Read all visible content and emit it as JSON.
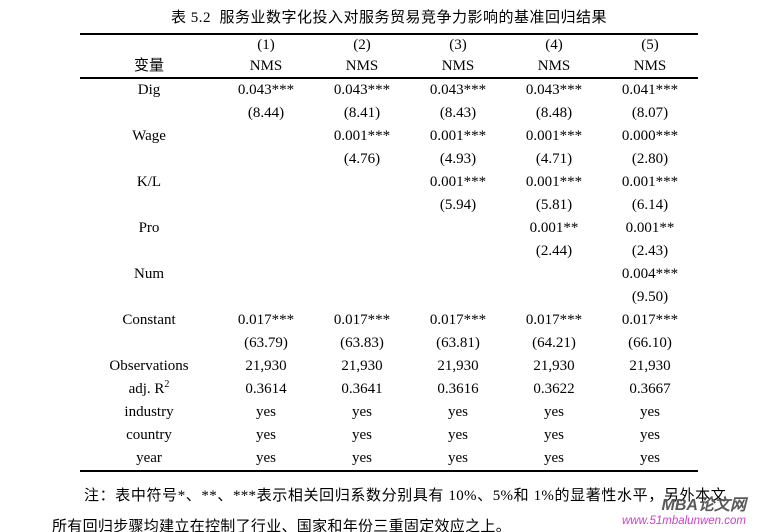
{
  "page": {
    "title": "表 5.2  服务业数字化投入对服务贸易竞争力影响的基准回归结果"
  },
  "table": {
    "header": {
      "variable_label": "变量",
      "col_numbers": [
        "(1)",
        "(2)",
        "(3)",
        "(4)",
        "(5)"
      ],
      "dep_var_labels": [
        "NMS",
        "NMS",
        "NMS",
        "NMS",
        "NMS"
      ]
    },
    "rows": [
      {
        "label": "Dig",
        "values": [
          "0.043***",
          "0.043***",
          "0.043***",
          "0.043***",
          "0.041***"
        ]
      },
      {
        "label": "",
        "values": [
          "(8.44)",
          "(8.41)",
          "(8.43)",
          "(8.48)",
          "(8.07)"
        ]
      },
      {
        "label": "Wage",
        "values": [
          "",
          "0.001***",
          "0.001***",
          "0.001***",
          "0.000***"
        ]
      },
      {
        "label": "",
        "values": [
          "",
          "(4.76)",
          "(4.93)",
          "(4.71)",
          "(2.80)"
        ]
      },
      {
        "label": "K/L",
        "values": [
          "",
          "",
          "0.001***",
          "0.001***",
          "0.001***"
        ]
      },
      {
        "label": "",
        "values": [
          "",
          "",
          "(5.94)",
          "(5.81)",
          "(6.14)"
        ]
      },
      {
        "label": "Pro",
        "values": [
          "",
          "",
          "",
          "0.001**",
          "0.001**"
        ]
      },
      {
        "label": "",
        "values": [
          "",
          "",
          "",
          "(2.44)",
          "(2.43)"
        ]
      },
      {
        "label": "Num",
        "values": [
          "",
          "",
          "",
          "",
          "0.004***"
        ]
      },
      {
        "label": "",
        "values": [
          "",
          "",
          "",
          "",
          "(9.50)"
        ]
      },
      {
        "label": "Constant",
        "values": [
          "0.017***",
          "0.017***",
          "0.017***",
          "0.017***",
          "0.017***"
        ]
      },
      {
        "label": "",
        "values": [
          "(63.79)",
          "(63.83)",
          "(63.81)",
          "(64.21)",
          "(66.10)"
        ]
      },
      {
        "label": "Observations",
        "values": [
          "21,930",
          "21,930",
          "21,930",
          "21,930",
          "21,930"
        ]
      },
      {
        "label": "adj. R",
        "label_sup": "2",
        "values": [
          "0.3614",
          "0.3641",
          "0.3616",
          "0.3622",
          "0.3667"
        ]
      },
      {
        "label": "industry",
        "values": [
          "yes",
          "yes",
          "yes",
          "yes",
          "yes"
        ]
      },
      {
        "label": "country",
        "values": [
          "yes",
          "yes",
          "yes",
          "yes",
          "yes"
        ]
      },
      {
        "label": "year",
        "values": [
          "yes",
          "yes",
          "yes",
          "yes",
          "yes"
        ]
      }
    ]
  },
  "note": {
    "text": "注：表中符号*、**、***表示相关回归系数分别具有 10%、5%和 1%的显著性水平，另外本文所有回归步骤均建立在控制了行业、国家和年份三重固定效应之上。"
  },
  "watermark": {
    "site_name": "MBA论文网",
    "site_url": "www.51mbalunwen.com",
    "url_color": "#cc3fcc"
  }
}
